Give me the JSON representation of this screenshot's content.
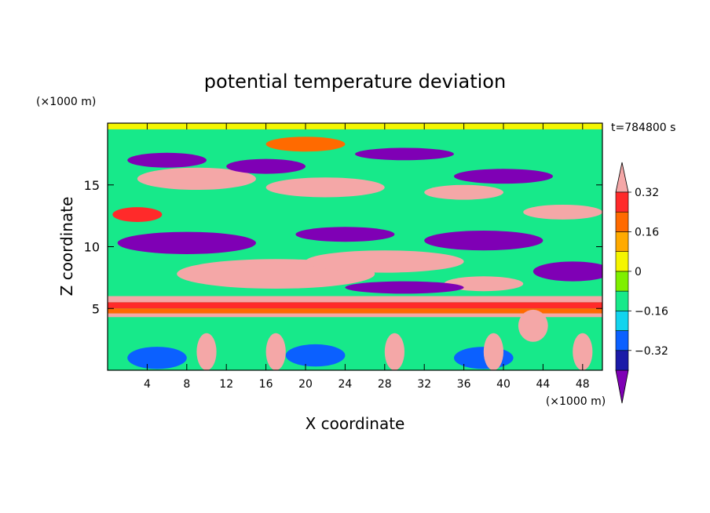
{
  "chart_data": {
    "type": "heatmap",
    "title": "potential temperature deviation",
    "xlabel": "X coordinate",
    "ylabel": "Z coordinate",
    "x_unit_label": "(×1000 m)",
    "y_unit_label": "(×1000 m)",
    "time_label": "t=784800 s",
    "xlim": [
      0,
      50
    ],
    "ylim": [
      0,
      20
    ],
    "x_ticks": [
      4,
      8,
      12,
      16,
      20,
      24,
      28,
      32,
      36,
      40,
      44,
      48
    ],
    "x_tick_labels": [
      "4",
      "8",
      "12",
      "16",
      "20",
      "24",
      "28",
      "32",
      "36",
      "40",
      "44",
      "48"
    ],
    "y_ticks": [
      5,
      10,
      15
    ],
    "y_tick_labels": [
      "5",
      "10",
      "15"
    ],
    "colorbar": {
      "levels": [
        -0.4,
        -0.32,
        -0.24,
        -0.16,
        -0.08,
        0,
        0.08,
        0.16,
        0.24,
        0.32,
        0.4
      ],
      "tick_values": [
        -0.32,
        -0.16,
        0,
        0.16,
        0.32
      ],
      "tick_labels": [
        "−0.32",
        "−0.16",
        "0",
        "0.16",
        "0.32"
      ],
      "colors": [
        "#7f00b5",
        "#1a1aa8",
        "#0b60ff",
        "#12d4ee",
        "#17e98a",
        "#7ff000",
        "#f5f500",
        "#ffaa00",
        "#ff6a00",
        "#ff2a2a",
        "#f4a7a7"
      ],
      "extend": "both"
    },
    "bands": [
      {
        "z_from": 19.5,
        "z_to": 20,
        "value": 0.0
      },
      {
        "z_from": 5.5,
        "z_to": 6.0,
        "value": 0.36
      },
      {
        "z_from": 5.0,
        "z_to": 5.5,
        "value": 0.25
      },
      {
        "z_from": 4.6,
        "z_to": 5.0,
        "value": 0.22
      },
      {
        "z_from": 4.3,
        "z_to": 4.6,
        "value": 0.36
      }
    ],
    "blobs": [
      {
        "x": 9,
        "z": 15.5,
        "rx": 6,
        "rz": 0.9,
        "value": 0.42
      },
      {
        "x": 22,
        "z": 14.8,
        "rx": 6,
        "rz": 0.8,
        "value": 0.42
      },
      {
        "x": 36,
        "z": 14.4,
        "rx": 4,
        "rz": 0.6,
        "value": 0.42
      },
      {
        "x": 46,
        "z": 12.8,
        "rx": 4,
        "rz": 0.6,
        "value": 0.42
      },
      {
        "x": 17,
        "z": 7.8,
        "rx": 10,
        "rz": 1.2,
        "value": 0.42
      },
      {
        "x": 28,
        "z": 8.8,
        "rx": 8,
        "rz": 0.9,
        "value": 0.42
      },
      {
        "x": 38,
        "z": 7.0,
        "rx": 4,
        "rz": 0.6,
        "value": 0.42
      },
      {
        "x": 43,
        "z": 3.6,
        "rx": 1.5,
        "rz": 1.3,
        "value": 0.42
      },
      {
        "x": 6,
        "z": 17.0,
        "rx": 4,
        "rz": 0.6,
        "value": -0.42
      },
      {
        "x": 16,
        "z": 16.5,
        "rx": 4,
        "rz": 0.6,
        "value": -0.42
      },
      {
        "x": 30,
        "z": 17.5,
        "rx": 5,
        "rz": 0.5,
        "value": -0.42
      },
      {
        "x": 40,
        "z": 15.7,
        "rx": 5,
        "rz": 0.6,
        "value": -0.42
      },
      {
        "x": 8,
        "z": 10.3,
        "rx": 7,
        "rz": 0.9,
        "value": -0.42
      },
      {
        "x": 24,
        "z": 11.0,
        "rx": 5,
        "rz": 0.6,
        "value": -0.42
      },
      {
        "x": 38,
        "z": 10.5,
        "rx": 6,
        "rz": 0.8,
        "value": -0.42
      },
      {
        "x": 30,
        "z": 6.7,
        "rx": 6,
        "rz": 0.5,
        "value": -0.42
      },
      {
        "x": 47,
        "z": 8.0,
        "rx": 4,
        "rz": 0.8,
        "value": -0.42
      },
      {
        "x": 5,
        "z": 1.0,
        "rx": 3,
        "rz": 0.9,
        "value": -0.3
      },
      {
        "x": 21,
        "z": 1.2,
        "rx": 3,
        "rz": 0.9,
        "value": -0.3
      },
      {
        "x": 38,
        "z": 1.0,
        "rx": 3,
        "rz": 0.9,
        "value": -0.3
      },
      {
        "x": 10,
        "z": 1.5,
        "rx": 1.0,
        "rz": 1.5,
        "value": 0.36
      },
      {
        "x": 17,
        "z": 1.5,
        "rx": 1.0,
        "rz": 1.5,
        "value": 0.36
      },
      {
        "x": 29,
        "z": 1.5,
        "rx": 1.0,
        "rz": 1.5,
        "value": 0.36
      },
      {
        "x": 39,
        "z": 1.5,
        "rx": 1.0,
        "rz": 1.5,
        "value": 0.36
      },
      {
        "x": 48,
        "z": 1.5,
        "rx": 1.0,
        "rz": 1.5,
        "value": 0.36
      },
      {
        "x": 20,
        "z": 18.3,
        "rx": 4,
        "rz": 0.6,
        "value": 0.2
      },
      {
        "x": 3,
        "z": 12.6,
        "rx": 2.5,
        "rz": 0.6,
        "value": 0.3
      }
    ]
  }
}
